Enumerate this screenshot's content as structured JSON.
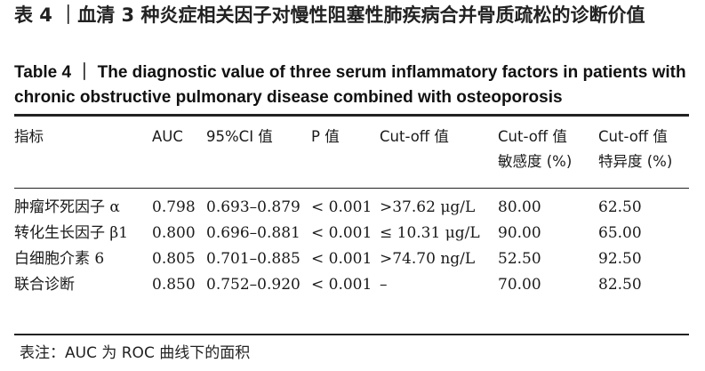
{
  "title_cn": "表 4 ｜血清 3 种炎症相关因子对慢性阻塞性肺疾病合并骨质疏松的诊断价值",
  "title_en": "Table 4 ｜ The diagnostic value of three serum inflammatory factors in patients with chronic obstructive pulmonary disease combined with osteoporosis",
  "table": {
    "headers": [
      "指标",
      "AUC",
      "95%CI 值",
      "P 值",
      "Cut-off 值",
      "Cut-off 值\n敏感度 (%)",
      "Cut-off 值\n特异度 (%)"
    ],
    "rows": [
      [
        "肿瘤坏死因子 α",
        "0.798",
        "0.693–0.879",
        "< 0.001",
        ">37.62 μg/L",
        "80.00",
        "62.50"
      ],
      [
        "转化生长因子 β1",
        "0.800",
        "0.696–0.881",
        "< 0.001",
        "≤ 10.31 μg/L",
        "90.00",
        "65.00"
      ],
      [
        "白细胞介素 6",
        "0.805",
        "0.701–0.885",
        "< 0.001",
        ">74.70 ng/L",
        "52.50",
        "92.50"
      ],
      [
        "联合诊断",
        "0.850",
        "0.752–0.920",
        "< 0.001",
        "–",
        "70.00",
        "82.50"
      ]
    ]
  },
  "note": "表注：AUC 为 ROC 曲线下的面积"
}
